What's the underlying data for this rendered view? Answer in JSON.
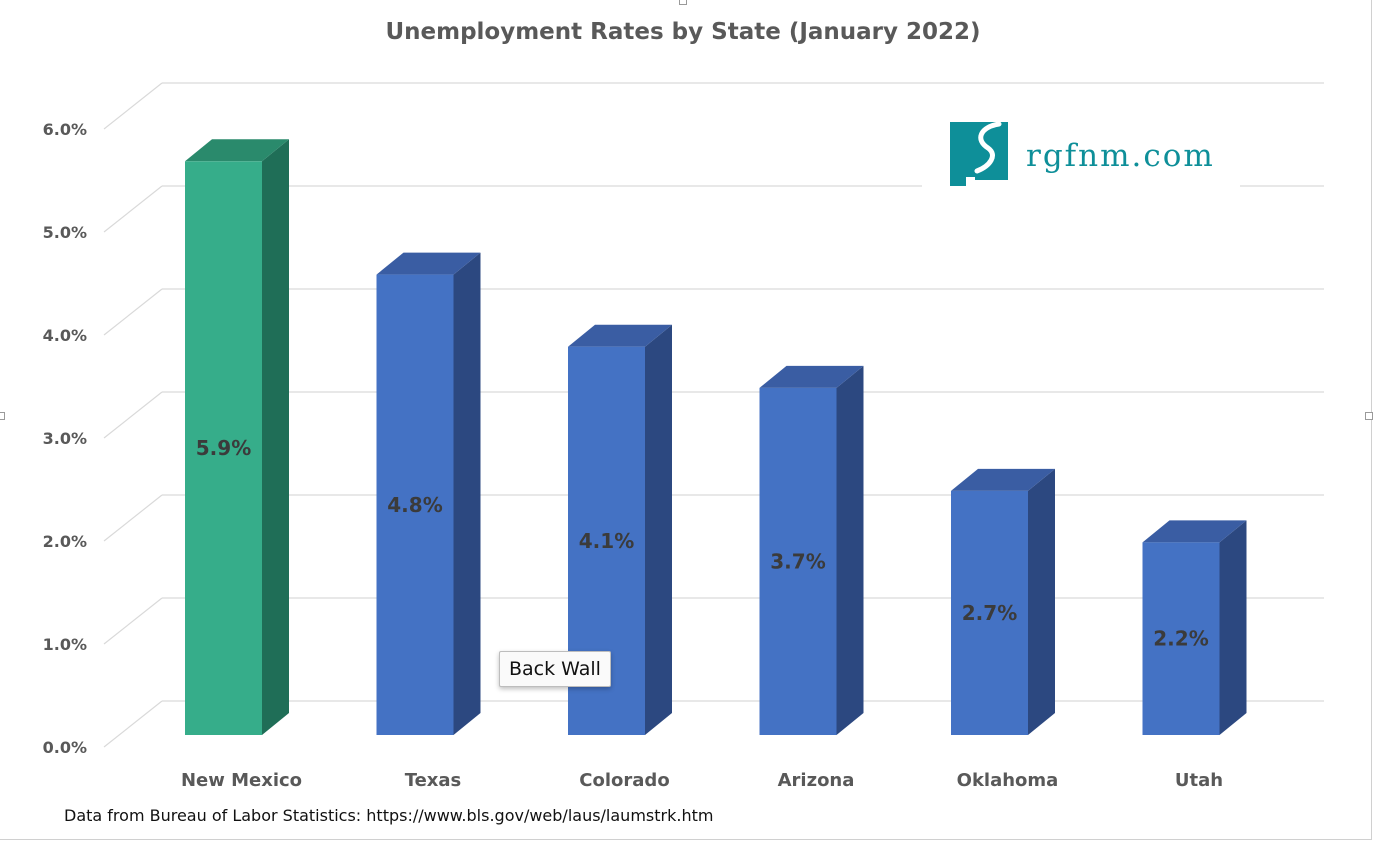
{
  "chart_data": {
    "type": "bar",
    "title": "Unemployment Rates by State (January 2022)",
    "categories": [
      "New Mexico",
      "Texas",
      "Colorado",
      "Arizona",
      "Oklahoma",
      "Utah"
    ],
    "values": [
      5.9,
      4.8,
      4.1,
      3.7,
      2.7,
      2.2
    ],
    "data_labels": [
      "5.9%",
      "4.8%",
      "4.1%",
      "3.7%",
      "2.7%",
      "2.2%"
    ],
    "y_ticks": [
      "0.0%",
      "1.0%",
      "2.0%",
      "3.0%",
      "4.0%",
      "5.0%",
      "6.0%"
    ],
    "ylim": [
      0,
      6.0
    ],
    "grid": true,
    "style": "3d-column",
    "colors": {
      "highlight_front": "#36ad8a",
      "highlight_side": "#1f6e57",
      "highlight_top": "#2a8a6c",
      "default_front": "#4472c4",
      "default_side": "#2c4880",
      "default_top": "#3a5da3"
    },
    "highlight_category": "New Mexico"
  },
  "logo": {
    "text": "rgfnm.com",
    "color": "#0e8f99",
    "icon": "new-mexico-river-logo-icon"
  },
  "tooltip": {
    "text": "Back Wall"
  },
  "source": {
    "text": "Data from Bureau of Labor Statistics: https://www.bls.gov/web/laus/laumstrk.htm"
  }
}
